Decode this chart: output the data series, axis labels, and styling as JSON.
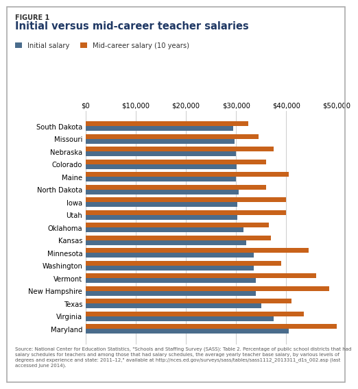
{
  "figure_label": "FIGURE 1",
  "title": "Initial versus mid-career teacher salaries",
  "legend": [
    "Initial salary",
    "Mid-career salary (10 years)"
  ],
  "initial_color": "#4a6c8c",
  "midcareer_color": "#c8621a",
  "states": [
    "South Dakota",
    "Missouri",
    "Nebraska",
    "Colorado",
    "Maine",
    "North Dakota",
    "Iowa",
    "Utah",
    "Oklahoma",
    "Kansas",
    "Minnesota",
    "Washington",
    "Vermont",
    "New Hampshire",
    "Texas",
    "Virginia",
    "Maryland"
  ],
  "initial_salaries": [
    29500,
    29700,
    30000,
    30100,
    30000,
    30500,
    30200,
    30300,
    31500,
    32000,
    33500,
    33500,
    34000,
    34000,
    35000,
    37500,
    40500
  ],
  "midcareer_salaries": [
    32500,
    34500,
    37500,
    36000,
    40500,
    36000,
    40000,
    40000,
    36500,
    37000,
    44500,
    39000,
    46000,
    48500,
    41000,
    43500,
    51500
  ],
  "xlim": [
    0,
    50000
  ],
  "xticks": [
    0,
    10000,
    20000,
    30000,
    40000,
    50000
  ],
  "source_text": "Source: National Center for Education Statistics, \"Schools and Staffing Survey (SASS): Table 2. Percentage of public school districts that had\nsalary schedules for teachers and among those that had salary schedules, the average yearly teacher base salary, by various levels of\ndegrees and experience and state: 2011–12,\" available at http://nces.ed.gov/surveys/sass/tables/sass1112_2013311_d1s_002.asp (last\naccessed June 2014).",
  "background_color": "#ffffff",
  "bar_height": 0.38,
  "grid_color": "#cccccc",
  "border_color": "#aaaaaa",
  "title_color": "#1f3864",
  "label_color": "#333333"
}
